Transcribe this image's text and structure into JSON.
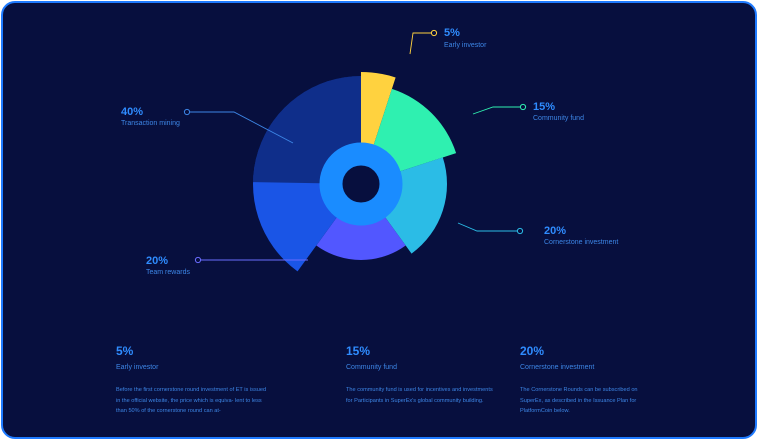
{
  "chart_data": {
    "type": "pie",
    "slices": [
      {
        "label": "Early investor",
        "percent_label": "5%",
        "value": 5,
        "color": "#ffd23f"
      },
      {
        "label": "Community fund",
        "percent_label": "15%",
        "value": 15,
        "color": "#2ff0b0"
      },
      {
        "label": "Cornerstone investment",
        "percent_label": "20%",
        "value": 20,
        "color": "#2bbce6"
      },
      {
        "label": "Team rewards",
        "percent_label": "20%",
        "value": 20,
        "color": "#5257ff"
      },
      {
        "label": "Transaction mining",
        "percent_label": "40%",
        "value": 40,
        "color": "#1a55e6"
      }
    ],
    "center_ring_color": "#1a8cff"
  },
  "cards": [
    {
      "percent": "5%",
      "label": "Early investor",
      "description": "Before the first cornerstone round investment of ET is issued in the official website, the price which is equiva- lent to less than 50% of the cornerstone round can at-"
    },
    {
      "percent": "15%",
      "label": "Community fund",
      "description": "The community fund is used for incentives and investments for Participants in SuperEx's global community building."
    },
    {
      "percent": "20%",
      "label": "Cornerstone investment",
      "description": "The Cornerstone Rounds can be subscribed on SuperEx, as described in the Issuance Plan for PlatformCoin below."
    }
  ]
}
